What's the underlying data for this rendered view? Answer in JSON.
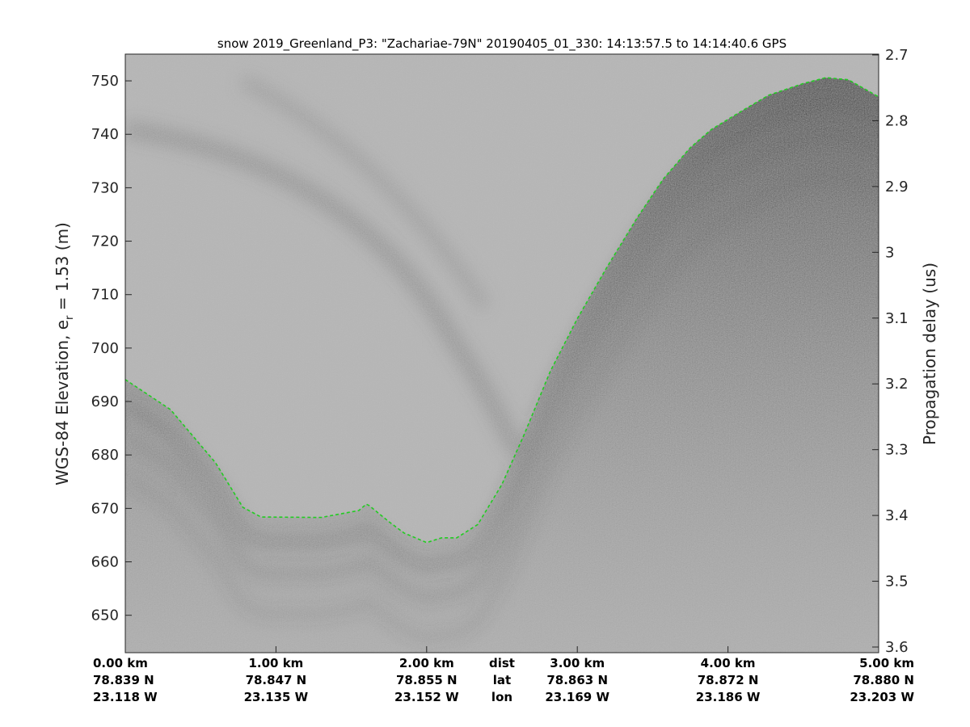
{
  "chart_data": {
    "type": "line",
    "title": "snow 2019_Greenland_P3: \"Zachariae-79N\"  20190405_01_330: 14:13:57.5 to 14:14:40.6 GPS",
    "ylabel": {
      "prefix": "WGS-84 Elevation, e",
      "subscript": "r",
      "suffix": " = 1.53 (m)"
    },
    "y2label": "Propagation delay (us)",
    "ylim": [
      643,
      755
    ],
    "y2lim": [
      2.7,
      3.6
    ],
    "xlim": [
      0,
      5
    ],
    "yticks": [
      650,
      660,
      670,
      680,
      690,
      700,
      710,
      720,
      730,
      740,
      750
    ],
    "y2ticks": [
      "2.7",
      "2.8",
      "2.9",
      "3",
      "3.1",
      "3.2",
      "3.3",
      "3.4",
      "3.5",
      "3.6"
    ],
    "xticks": [
      {
        "dist_km": 0,
        "dist": "0.00 km",
        "lat": "78.839 N",
        "lon": "23.118 W"
      },
      {
        "dist_km": 1,
        "dist": "1.00 km",
        "lat": "78.847 N",
        "lon": "23.135 W"
      },
      {
        "dist_km": 2,
        "dist": "2.00 km",
        "lat": "78.855 N",
        "lon": "23.152 W"
      },
      {
        "dist_km": 3,
        "dist": "3.00 km",
        "lat": "78.863 N",
        "lon": "23.169 W"
      },
      {
        "dist_km": 4,
        "dist": "4.00 km",
        "lat": "78.872 N",
        "lon": "23.186 W"
      },
      {
        "dist_km": 5,
        "dist": "5.00 km",
        "lat": "78.880 N",
        "lon": "23.203 W"
      }
    ],
    "row_labels": {
      "dist": "dist",
      "lat": "lat",
      "lon": "lon"
    },
    "grid": false,
    "background": "grayscale radar echogram",
    "series": [
      {
        "color": "#22cc22",
        "style": "dashed",
        "x": [
          0,
          0.3,
          0.6,
          0.78,
          0.9,
          1.3,
          1.55,
          1.6,
          1.62,
          1.75,
          1.85,
          2.0,
          2.1,
          2.2,
          2.34,
          2.5,
          2.65,
          2.82,
          3.0,
          3.2,
          3.4,
          3.57,
          3.75,
          3.89,
          4.1,
          4.27,
          4.5,
          4.65,
          4.8,
          5.0
        ],
        "y": [
          694.1,
          688.5,
          678.5,
          670.2,
          668.4,
          668.3,
          669.6,
          670.8,
          670.5,
          667.5,
          665.4,
          663.6,
          664.5,
          664.5,
          667,
          674.5,
          684,
          695.6,
          705.5,
          715.3,
          724.5,
          731.6,
          737.5,
          740.9,
          744.5,
          747.3,
          749.5,
          750.6,
          750.2,
          747
        ]
      }
    ]
  }
}
